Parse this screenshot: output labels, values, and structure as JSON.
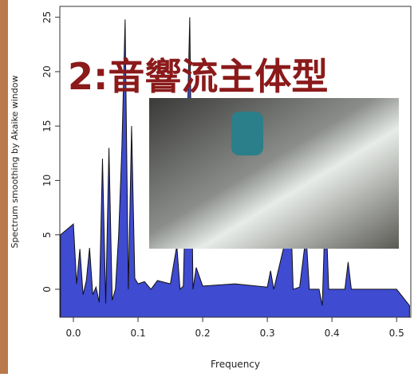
{
  "chart_data": {
    "type": "area",
    "annotation": "2:音響流主体型",
    "xlabel": "Frequency",
    "ylabel": "Spectrum smoothing by Akaike window",
    "color": "#3f4bd0",
    "x": [
      -0.02,
      0.0,
      0.005,
      0.01,
      0.015,
      0.02,
      0.025,
      0.03,
      0.035,
      0.04,
      0.045,
      0.05,
      0.055,
      0.06,
      0.065,
      0.07,
      0.075,
      0.08,
      0.085,
      0.09,
      0.095,
      0.1,
      0.11,
      0.12,
      0.13,
      0.15,
      0.16,
      0.165,
      0.17,
      0.175,
      0.18,
      0.185,
      0.19,
      0.2,
      0.25,
      0.3,
      0.305,
      0.31,
      0.33,
      0.335,
      0.34,
      0.35,
      0.36,
      0.365,
      0.38,
      0.385,
      0.39,
      0.395,
      0.42,
      0.425,
      0.43,
      0.5,
      0.52
    ],
    "values": [
      5,
      6,
      0.5,
      3.7,
      -0.5,
      0.8,
      3.8,
      -0.5,
      0.2,
      -1.2,
      12,
      -1.3,
      13,
      -1,
      0,
      5,
      13,
      24.8,
      0,
      15,
      1,
      0.5,
      0.7,
      0,
      0.8,
      0.5,
      4,
      0,
      0.3,
      12,
      25,
      0,
      2,
      0.3,
      0.5,
      0.2,
      1.7,
      0,
      5,
      9.5,
      0,
      0.2,
      5,
      0,
      0,
      -1.5,
      8,
      0,
      0,
      2.5,
      0,
      0,
      -1.5
    ],
    "xlim": [
      -0.021,
      0.522
    ],
    "ylim": [
      -2.57,
      26
    ],
    "xticks": [
      {
        "value": 0,
        "label": "0.0"
      },
      {
        "value": 0.1,
        "label": "0.1"
      },
      {
        "value": 0.2,
        "label": "0.2"
      },
      {
        "value": 0.3,
        "label": "0.3"
      },
      {
        "value": 0.4,
        "label": "0.4"
      },
      {
        "value": 0.5,
        "label": "0.5"
      }
    ],
    "yticks": [
      0,
      5,
      10,
      15,
      20,
      25
    ]
  }
}
